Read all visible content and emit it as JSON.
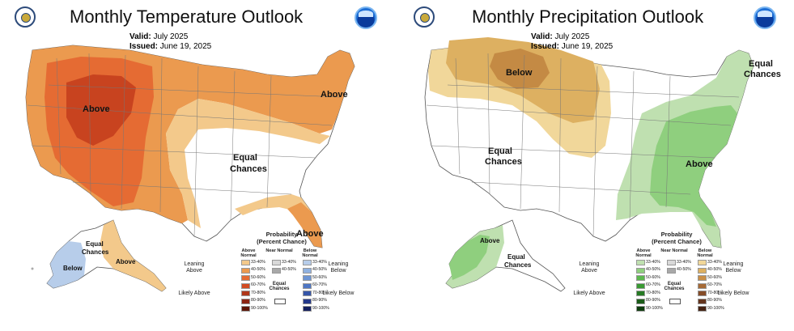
{
  "temperature": {
    "title": "Monthly Temperature Outlook",
    "valid_label": "Valid:",
    "valid_value": "July 2025",
    "issued_label": "Issued:",
    "issued_value": "June 19, 2025",
    "labels": {
      "above_west": "Above",
      "above_northeast": "Above",
      "equal_1": "Equal",
      "equal_2": "Chances",
      "above_florida": "Above",
      "ak_equal_1": "Equal",
      "ak_equal_2": "Chances",
      "ak_below": "Below",
      "ak_above": "Above"
    },
    "legend": {
      "title1": "Probability",
      "title2": "(Percent Chance)",
      "col_left": "Above Normal",
      "col_mid": "Near Normal",
      "col_right": "Below Normal",
      "side_left_top": "Leaning Above",
      "side_left_bottom": "Likely Above",
      "side_right_top": "Leaning Below",
      "side_right_bottom": "Likely Below",
      "equal_chances": "Equal Chances",
      "left_items": [
        "33-40%",
        "40-50%",
        "50-60%",
        "60-70%",
        "70-80%",
        "80-90%",
        "90-100%"
      ],
      "mid_items": [
        "33-40%",
        "40-50%"
      ],
      "right_items": [
        "33-40%",
        "40-50%",
        "50-60%",
        "60-70%",
        "70-80%",
        "80-90%",
        "90-100%"
      ],
      "left_colors": [
        "#f3c98b",
        "#eb9a4f",
        "#e56b33",
        "#d24b22",
        "#b0371a",
        "#8c2412",
        "#5e1507"
      ],
      "mid_colors": [
        "#d9d9d9",
        "#a8a8a8"
      ],
      "right_colors": [
        "#b7cdea",
        "#8fb1e0",
        "#6d95d4",
        "#4f77c4",
        "#3656a8",
        "#23388a",
        "#14205e"
      ]
    }
  },
  "precipitation": {
    "title": "Monthly Precipitation Outlook",
    "valid_label": "Valid:",
    "valid_value": "July 2025",
    "issued_label": "Issued:",
    "issued_value": "June 19, 2025",
    "labels": {
      "below_north": "Below",
      "equal_ne_1": "Equal",
      "equal_ne_2": "Chances",
      "equal_w_1": "Equal",
      "equal_w_2": "Chances",
      "above_se": "Above",
      "ak_above": "Above",
      "ak_equal_1": "Equal",
      "ak_equal_2": "Chances"
    },
    "legend": {
      "title1": "Probability",
      "title2": "(Percent Chance)",
      "col_left": "Above Normal",
      "col_mid": "Near Normal",
      "col_right": "Below Normal",
      "side_left_top": "Leaning Above",
      "side_left_bottom": "Likely Above",
      "side_right_top": "Leaning Below",
      "side_right_bottom": "Likely Below",
      "equal_chances": "Equal Chances",
      "left_items": [
        "33-40%",
        "40-50%",
        "50-60%",
        "60-70%",
        "70-80%",
        "80-90%",
        "90-100%"
      ],
      "mid_items": [
        "33-40%",
        "40-50%"
      ],
      "right_items": [
        "33-40%",
        "40-50%",
        "50-60%",
        "60-70%",
        "70-80%",
        "80-90%",
        "90-100%"
      ],
      "left_colors": [
        "#bfe0b0",
        "#8fcf7e",
        "#5cb84e",
        "#3a9a33",
        "#267a24",
        "#1a5c18",
        "#0f3d0e"
      ],
      "mid_colors": [
        "#d9d9d9",
        "#a8a8a8"
      ],
      "right_colors": [
        "#f1d79a",
        "#ddb061",
        "#c98f48",
        "#a66a36",
        "#854c28",
        "#64341d",
        "#452212"
      ]
    }
  }
}
